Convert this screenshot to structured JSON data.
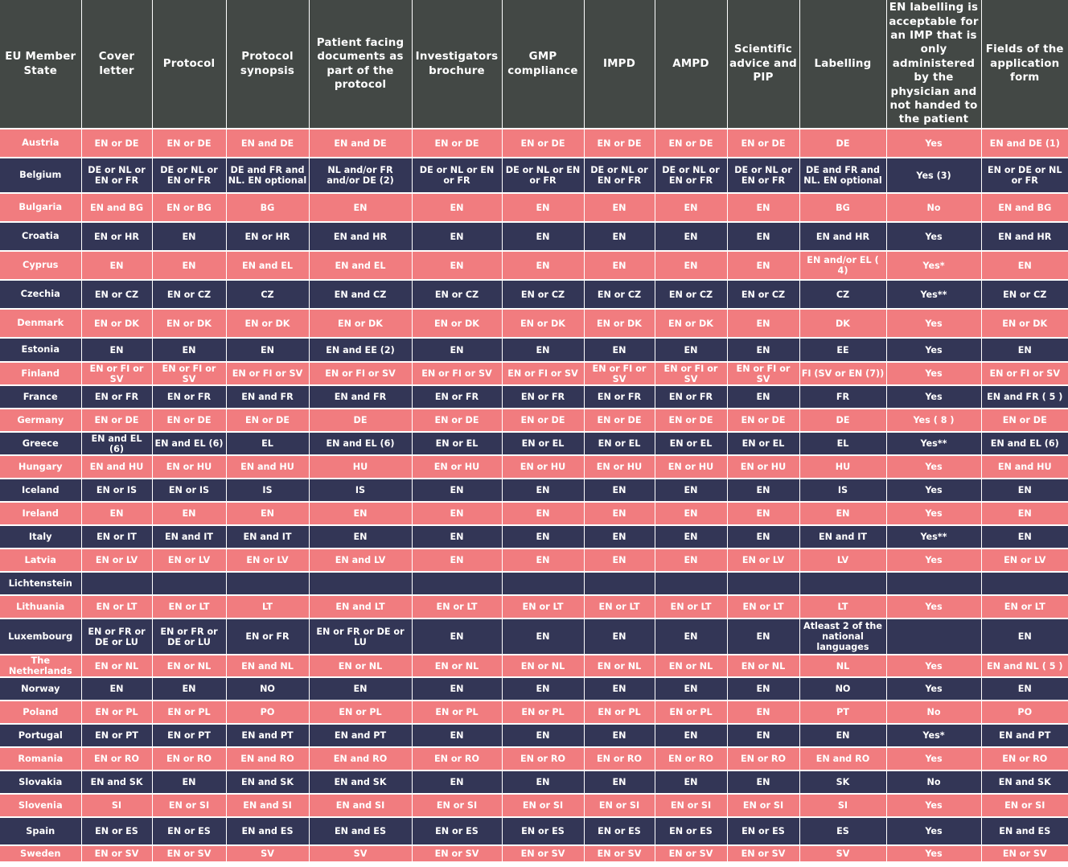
{
  "columns": [
    "EU Member State",
    "Cover letter",
    "Protocol",
    "Protocol synopsis",
    "Patient facing documents as part of the protocol",
    "Investigators brochure",
    "GMP compliance",
    "IMPD",
    "AMPD",
    "Scientific advice and PIP",
    "Labelling",
    "EN labelling is acceptable for an IMP that is only administered by the physician and not handed to the patient",
    "Fields of the application form"
  ],
  "rows": [
    [
      "Austria",
      "EN or DE",
      "EN or DE",
      "EN and DE",
      "EN and DE",
      "EN or DE",
      "EN or DE",
      "EN or DE",
      "EN or DE",
      "EN or DE",
      "DE",
      "Yes",
      "EN and DE (1)"
    ],
    [
      "Belgium",
      "DE or NL or EN or FR",
      "DE or NL or EN or FR",
      "DE and FR and NL. EN optional",
      "NL and/or FR and/or DE (2)",
      "DE or NL or EN or FR",
      "DE or NL or EN or FR",
      "DE or NL or EN or FR",
      "DE or NL or EN or FR",
      "DE or NL or EN or FR",
      "DE and FR and NL. EN optional",
      "Yes (3)",
      "EN or DE or NL or FR"
    ],
    [
      "Bulgaria",
      "EN and BG",
      "EN or BG",
      "BG",
      "EN",
      "EN",
      "EN",
      "EN",
      "EN",
      "EN",
      "BG",
      "No",
      "EN and BG"
    ],
    [
      "Croatia",
      "EN or HR",
      "EN",
      "EN or HR",
      "EN and HR",
      "EN",
      "EN",
      "EN",
      "EN",
      "EN",
      "EN and HR",
      "Yes",
      "EN and HR"
    ],
    [
      "Cyprus",
      "EN",
      "EN",
      "EN and EL",
      "EN and EL",
      "EN",
      "EN",
      "EN",
      "EN",
      "EN",
      "EN and/or EL ( 4)",
      "Yes*",
      "EN"
    ],
    [
      "Czechia",
      "EN or CZ",
      "EN or CZ",
      "CZ",
      "EN and CZ",
      "EN or CZ",
      "EN or CZ",
      "EN or CZ",
      "EN or CZ",
      "EN or CZ",
      "CZ",
      "Yes**",
      "EN or CZ"
    ],
    [
      "Denmark",
      "EN or DK",
      "EN or DK",
      "EN or DK",
      "EN or DK",
      "EN or DK",
      "EN or DK",
      "EN or DK",
      "EN or DK",
      "EN",
      "DK",
      "Yes",
      "EN or DK"
    ],
    [
      "Estonia",
      "EN",
      "EN",
      "EN",
      "EN and EE (2)",
      "EN",
      "EN",
      "EN",
      "EN",
      "EN",
      "EE",
      "Yes",
      "EN"
    ],
    [
      "Finland",
      "EN or FI or SV",
      "EN or FI or SV",
      "EN or FI or SV",
      "EN or FI or SV",
      "EN or FI or SV",
      "EN or FI or SV",
      "EN or FI or SV",
      "EN or FI or SV",
      "EN or FI or SV",
      "FI (SV or EN (7))",
      "Yes",
      "EN or FI or SV"
    ],
    [
      "France",
      "EN or FR",
      "EN or FR",
      "EN and FR",
      "EN and FR",
      "EN or FR",
      "EN or FR",
      "EN or FR",
      "EN or FR",
      "EN",
      "FR",
      "Yes",
      "EN and FR ( 5 )"
    ],
    [
      "Germany",
      "EN or DE",
      "EN or DE",
      "EN or DE",
      "DE",
      "EN or DE",
      "EN or DE",
      "EN or DE",
      "EN or DE",
      "EN or DE",
      "DE",
      "Yes ( 8 )",
      "EN or DE"
    ],
    [
      "Greece",
      "EN and EL (6)",
      "EN and EL (6)",
      "EL",
      "EN and EL (6)",
      "EN or EL",
      "EN or EL",
      "EN or EL",
      "EN or EL",
      "EN or EL",
      "EL",
      "Yes**",
      "EN and EL (6)"
    ],
    [
      "Hungary",
      "EN and HU",
      "EN or HU",
      "EN and HU",
      "HU",
      "EN or HU",
      "EN or HU",
      "EN or HU",
      "EN or HU",
      "EN or HU",
      "HU",
      "Yes",
      "EN and HU"
    ],
    [
      "Iceland",
      "EN or IS",
      "EN or IS",
      "IS",
      "IS",
      "EN",
      "EN",
      "EN",
      "EN",
      "EN",
      "IS",
      "Yes",
      "EN"
    ],
    [
      "Ireland",
      "EN",
      "EN",
      "EN",
      "EN",
      "EN",
      "EN",
      "EN",
      "EN",
      "EN",
      "EN",
      "Yes",
      "EN"
    ],
    [
      "Italy",
      "EN or IT",
      "EN and IT",
      "EN and IT",
      "EN",
      "EN",
      "EN",
      "EN",
      "EN",
      "EN",
      "EN and IT",
      "Yes**",
      "EN"
    ],
    [
      "Latvia",
      "EN or LV",
      "EN or LV",
      "EN or LV",
      "EN and LV",
      "EN",
      "EN",
      "EN",
      "EN",
      "EN or LV",
      "LV",
      "Yes",
      "EN or LV"
    ],
    [
      "Lichtenstein",
      "",
      "",
      "",
      "",
      "",
      "",
      "",
      "",
      "",
      "",
      "",
      ""
    ],
    [
      "Lithuania",
      "EN or LT",
      "EN or LT",
      "LT",
      "EN and LT",
      "EN or LT",
      "EN or LT",
      "EN or LT",
      "EN or LT",
      "EN or LT",
      "LT",
      "Yes",
      "EN or LT"
    ],
    [
      "Luxembourg",
      "EN or FR or DE or LU",
      "EN or FR or DE or LU",
      "EN or FR",
      "EN or FR or DE or LU",
      "EN",
      "EN",
      "EN",
      "EN",
      "EN",
      "Atleast 2 of the national languages",
      "",
      "EN"
    ],
    [
      "The Netherlands",
      "EN or NL",
      "EN or NL",
      "EN and NL",
      "EN or NL",
      "EN or NL",
      "EN or NL",
      "EN or NL",
      "EN or NL",
      "EN or NL",
      "NL",
      "Yes",
      "EN and NL ( 5 )"
    ],
    [
      "Norway",
      "EN",
      "EN",
      "NO",
      "EN",
      "EN",
      "EN",
      "EN",
      "EN",
      "EN",
      "NO",
      "Yes",
      "EN"
    ],
    [
      "Poland",
      "EN or PL",
      "EN or PL",
      "PO",
      "EN or PL",
      "EN or PL",
      "EN or PL",
      "EN or PL",
      "EN or PL",
      "EN",
      "PT",
      "No",
      "PO"
    ],
    [
      "Portugal",
      "EN or PT",
      "EN or PT",
      "EN and PT",
      "EN and PT",
      "EN",
      "EN",
      "EN",
      "EN",
      "EN",
      "EN",
      "Yes*",
      "EN and PT"
    ],
    [
      "Romania",
      "EN or RO",
      "EN or RO",
      "EN and RO",
      "EN and RO",
      "EN or RO",
      "EN or RO",
      "EN or RO",
      "EN or RO",
      "EN or RO",
      "EN and RO",
      "Yes",
      "EN or RO"
    ],
    [
      "Slovakia",
      "EN and SK",
      "EN",
      "EN and SK",
      "EN and SK",
      "EN",
      "EN",
      "EN",
      "EN",
      "EN",
      "SK",
      "No",
      "EN and SK"
    ],
    [
      "Slovenia",
      "SI",
      "EN or SI",
      "EN and SI",
      "EN and SI",
      "EN or SI",
      "EN or SI",
      "EN or SI",
      "EN or SI",
      "EN or SI",
      "SI",
      "Yes",
      "EN or SI"
    ],
    [
      "Spain",
      "EN or ES",
      "EN or ES",
      "EN and ES",
      "EN and ES",
      "EN or ES",
      "EN or ES",
      "EN or ES",
      "EN or ES",
      "EN or ES",
      "ES",
      "Yes",
      "EN and ES"
    ],
    [
      "Sweden",
      "EN or SV",
      "EN or SV",
      "SV",
      "SV",
      "EN or SV",
      "EN or SV",
      "EN or SV",
      "EN or SV",
      "EN or SV",
      "SV",
      "Yes",
      "EN or SV"
    ]
  ]
}
